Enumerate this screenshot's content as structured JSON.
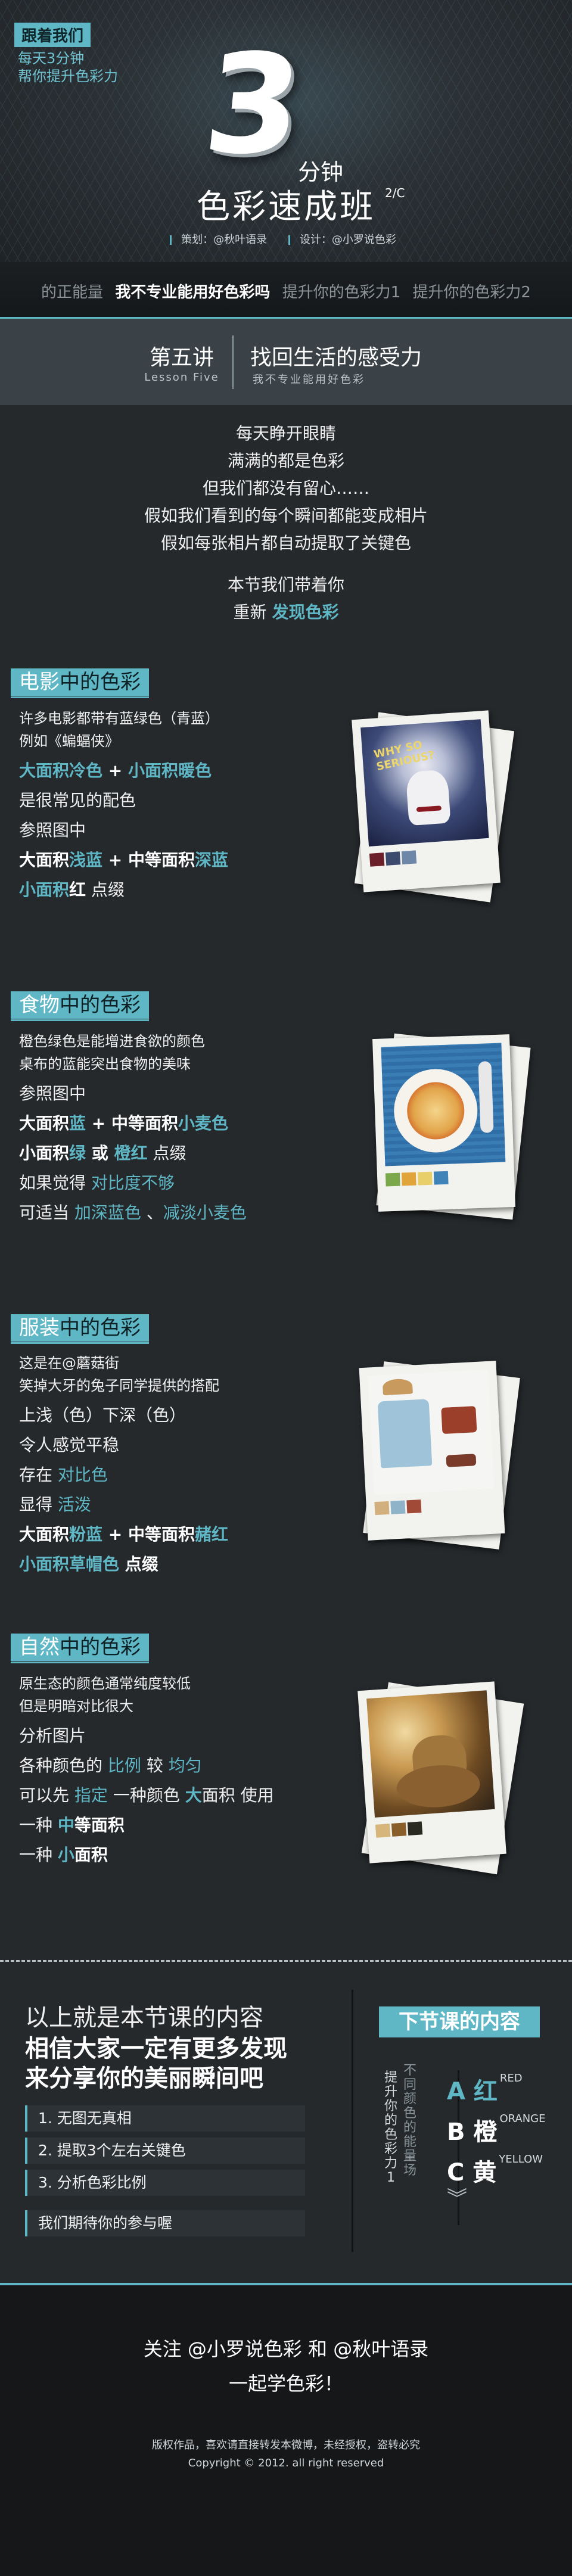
{
  "hero": {
    "follow_tag": "跟着我们",
    "sub1": "每天3分钟",
    "sub2": "帮你提升色彩力",
    "number": "3",
    "minutes": "分钟",
    "title": "色彩速成班",
    "title_sup": "2/C",
    "credit_plan": "策划：@秋叶语录",
    "credit_design": "设计：@小罗说色彩"
  },
  "nav": {
    "items": [
      "的正能量",
      "我不专业能用好色彩吗",
      "提升你的色彩力1",
      "提升你的色彩力2"
    ]
  },
  "lesson": {
    "number": "第五讲",
    "number_en": "Lesson Five",
    "title": "找回生活的感受力",
    "subtitle": "我不专业能用好色彩"
  },
  "intro": {
    "lines": [
      "每天睁开眼睛",
      "满满的都是色彩",
      "但我们都没有留心……",
      "假如我们看到的每个瞬间都能变成相片",
      "假如每张相片都自动提取了关键色"
    ],
    "lead": "本节我们带着你",
    "found_prefix": "重新",
    "found_accent": "发现色彩"
  },
  "movie": {
    "head_a": "电影",
    "head_b": "中的色彩",
    "l1": "许多电影都带有蓝绿色（青蓝）",
    "l2": "例如《蝙蝠侠》",
    "l3a": "大面积冷色",
    "l3b": " + ",
    "l3c": "小面积暖色",
    "l4": "是很常见的配色",
    "l5": "参照图中",
    "l6a": "大面积",
    "l6b": "浅蓝",
    "l6c": " + ",
    "l6d": "中",
    "l6e": "等面积",
    "l6f": "深蓝",
    "l7a": "小面积",
    "l7b": "红",
    "l7c": " 点缀",
    "poster_text": "WHY SO SERIOUS?",
    "swatches": [
      "#6b1f28",
      "#3c4a6e",
      "#6e86a8"
    ]
  },
  "food": {
    "head_a": "食物",
    "head_b": "中的色彩",
    "l1": "橙色绿色是能增进食欲的颜色",
    "l2": "桌布的蓝能突出食物的美味",
    "l3": "参照图中",
    "l4a": "大面积",
    "l4b": "蓝",
    "l4c": " + ",
    "l4d": "中",
    "l4e": "等面积",
    "l4f": "小麦色",
    "l5a": "小面积",
    "l5b": "绿",
    "l5c": " 或 ",
    "l5d": "橙红",
    "l5e": " 点缀",
    "l6a": "如果觉得 ",
    "l6b": "对比度不够",
    "l7a": "可适当 ",
    "l7b": "加深蓝色",
    "l7c": " 、",
    "l7d": "减淡小麦色",
    "swatches": [
      "#7aa84a",
      "#e0a43a",
      "#e8cf6a",
      "#3f83b8"
    ]
  },
  "fashion": {
    "head_a": "服装",
    "head_b": "中的色彩",
    "l1": "这是在@蘑菇街",
    "l2": "笑掉大牙的兔子同学提供的搭配",
    "l3": "上浅（色）下深（色）",
    "l4": "令人感觉平稳",
    "l5a": "存在 ",
    "l5b": "对比色",
    "l6a": "显得 ",
    "l6b": "活泼",
    "l7a": "大面积",
    "l7b": "粉蓝",
    "l7c": " + ",
    "l7d": "中",
    "l7e": "等面积",
    "l7f": "赭红",
    "l8a": "小面积",
    "l8b": "草帽色",
    "l8c": " 点缀",
    "swatches": [
      "#d1b07e",
      "#8fb3c9",
      "#a24a38"
    ]
  },
  "nature": {
    "head_a": "自然",
    "head_b": "中的色彩",
    "l1": "原生态的颜色通常纯度较低",
    "l2": "但是明暗对比很大",
    "l3": "分析图片",
    "l4a": "各种颜色的 ",
    "l4b": "比例",
    "l4c": " 较 ",
    "l4d": "均匀",
    "l5a": "可以先 ",
    "l5b": "指定",
    "l5c": " 一种颜色 ",
    "l5d": "大",
    "l5e": "面积 使用",
    "l6a": "一种 ",
    "l6b": "中",
    "l6c": "等面积",
    "l7a": "一种 ",
    "l7b": "小",
    "l7c": "面积",
    "swatches": [
      "#d6b67a",
      "#8a5e2a",
      "#2b2a22"
    ]
  },
  "summary": {
    "line1": "以上就是本节课的内容",
    "line2": "相信大家一定有更多发现",
    "line3": "来分享你的美丽瞬间吧",
    "steps": [
      "1. 无图无真相",
      "2. 提取3个左右关键色",
      "3. 分析色彩比例"
    ],
    "wait": "我们期待你的参与喔"
  },
  "next": {
    "head": "下节课的内容",
    "v1": "提升你的色彩力1",
    "v2": "不同颜色的能量场",
    "options": [
      {
        "letter": "A",
        "cn": "红",
        "en": "RED"
      },
      {
        "letter": "B",
        "cn": "橙",
        "en": "ORANGE"
      },
      {
        "letter": "C",
        "cn": "黄",
        "en": "YELLOW"
      }
    ],
    "chevron": "︾"
  },
  "footer": {
    "follow": "关注 @小罗说色彩 和 @秋叶语录",
    "together": "一起学色彩！",
    "rights": "版权作品，喜欢请直接转发本微博，未经授权，盗转必究",
    "copyright": "Copyright © 2012. all right reserved"
  },
  "colors": {
    "accent": "#5fb7c6",
    "bg": "#25292c"
  }
}
